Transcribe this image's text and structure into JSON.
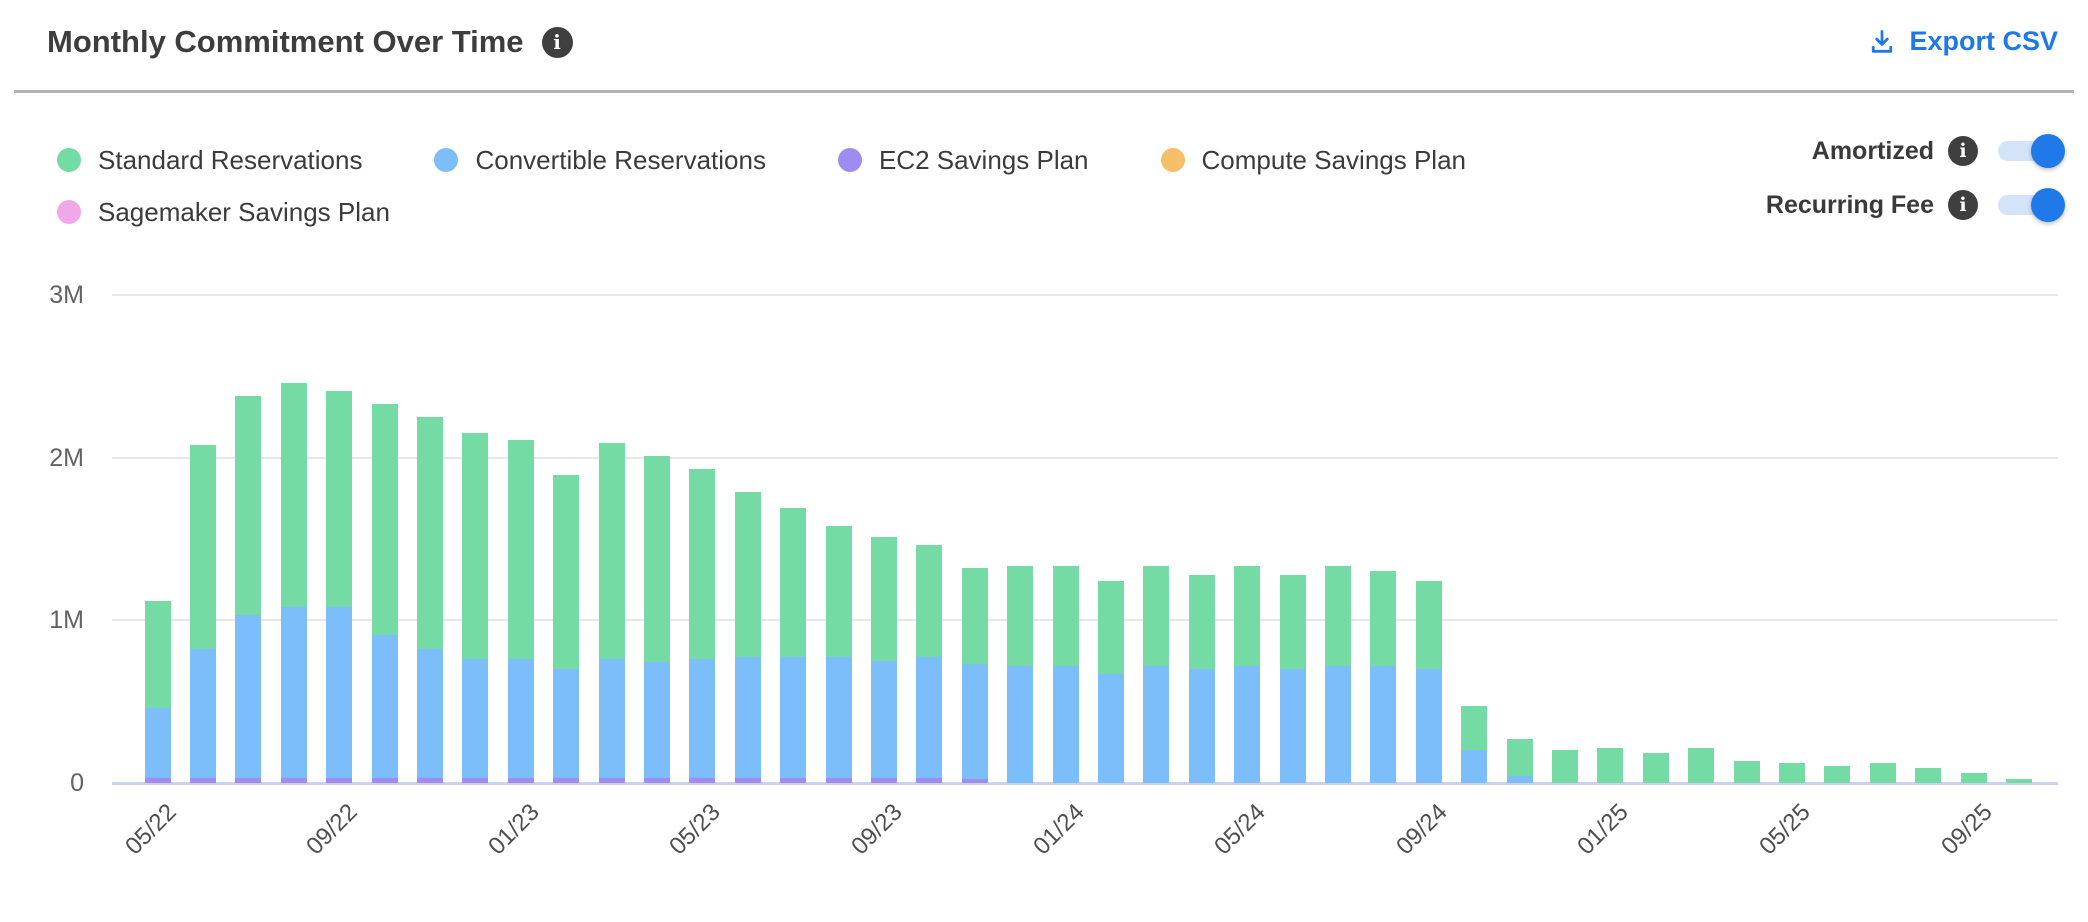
{
  "header": {
    "title": "Monthly Commitment Over Time",
    "export_label": "Export CSV"
  },
  "toggles": [
    {
      "label": "Amortized",
      "state": "on"
    },
    {
      "label": "Recurring Fee",
      "state": "on"
    }
  ],
  "colors": {
    "standard_reservations": "#74dba5",
    "convertible_reservations": "#7cbef9",
    "ec2_savings_plan": "#a08cf0",
    "compute_savings_plan": "#f5bf67",
    "sagemaker_savings_plan": "#f0a8ea",
    "accent_blue": "#1e78e9",
    "toggle_track": "#d3e3f8",
    "info_icon_bg": "#3f3f3f"
  },
  "legend_rows": [
    [
      0,
      1,
      2,
      3
    ],
    [
      4
    ]
  ],
  "chart_data": {
    "type": "bar",
    "subtype": "stacked",
    "title": "Monthly Commitment Over Time",
    "value_unit": "millions",
    "ylim": [
      0,
      3
    ],
    "y_ticks": [
      {
        "label": "0",
        "value": 0
      },
      {
        "label": "1M",
        "value": 1
      },
      {
        "label": "2M",
        "value": 2
      },
      {
        "label": "3M",
        "value": 3
      }
    ],
    "x": [
      "05/22",
      "06/22",
      "07/22",
      "08/22",
      "09/22",
      "10/22",
      "11/22",
      "12/22",
      "01/23",
      "02/23",
      "03/23",
      "04/23",
      "05/23",
      "06/23",
      "07/23",
      "08/23",
      "09/23",
      "10/23",
      "11/23",
      "12/23",
      "01/24",
      "02/24",
      "03/24",
      "04/24",
      "05/24",
      "06/24",
      "07/24",
      "08/24",
      "09/24",
      "10/24",
      "11/24",
      "12/24",
      "01/25",
      "02/25",
      "03/25",
      "04/25",
      "05/25",
      "06/25",
      "07/25",
      "08/25",
      "09/25",
      "10/25"
    ],
    "x_tick_indices": [
      0,
      4,
      8,
      12,
      16,
      20,
      24,
      28,
      32,
      36,
      40
    ],
    "x_tick_labels": [
      "05/22",
      "09/22",
      "01/23",
      "05/23",
      "09/23",
      "01/24",
      "05/24",
      "09/24",
      "01/25",
      "05/25",
      "09/25"
    ],
    "grid": "horizontal",
    "legend_position": "top-left",
    "stack_order_bottom_to_top": [
      "Sagemaker Savings Plan",
      "Compute Savings Plan",
      "EC2 Savings Plan",
      "Convertible Reservations",
      "Standard Reservations"
    ],
    "series": [
      {
        "name": "Standard Reservations",
        "color": "#74dba5",
        "values": [
          0.66,
          1.26,
          1.35,
          1.38,
          1.33,
          1.42,
          1.43,
          1.39,
          1.35,
          1.19,
          1.33,
          1.27,
          1.17,
          1.02,
          0.92,
          0.81,
          0.76,
          0.69,
          0.59,
          0.61,
          0.61,
          0.57,
          0.61,
          0.58,
          0.61,
          0.58,
          0.61,
          0.58,
          0.54,
          0.27,
          0.23,
          0.2,
          0.21,
          0.18,
          0.21,
          0.13,
          0.12,
          0.1,
          0.12,
          0.09,
          0.06,
          0.02
        ]
      },
      {
        "name": "Convertible Reservations",
        "color": "#7cbef9",
        "values": [
          0.43,
          0.79,
          1.0,
          1.05,
          1.05,
          0.88,
          0.79,
          0.73,
          0.73,
          0.67,
          0.73,
          0.71,
          0.73,
          0.74,
          0.74,
          0.74,
          0.72,
          0.74,
          0.71,
          0.72,
          0.72,
          0.67,
          0.72,
          0.7,
          0.72,
          0.7,
          0.72,
          0.72,
          0.7,
          0.2,
          0.04,
          0,
          0,
          0,
          0,
          0,
          0,
          0,
          0,
          0,
          0,
          0
        ]
      },
      {
        "name": "EC2 Savings Plan",
        "color": "#a08cf0",
        "values": [
          0.03,
          0.03,
          0.03,
          0.03,
          0.03,
          0.03,
          0.03,
          0.03,
          0.03,
          0.03,
          0.03,
          0.03,
          0.03,
          0.03,
          0.03,
          0.03,
          0.03,
          0.03,
          0.02,
          0,
          0,
          0,
          0,
          0,
          0,
          0,
          0,
          0,
          0,
          0,
          0,
          0,
          0,
          0,
          0,
          0,
          0,
          0,
          0,
          0,
          0,
          0
        ]
      },
      {
        "name": "Compute Savings Plan",
        "color": "#f5bf67",
        "values": [
          0,
          0,
          0,
          0,
          0,
          0,
          0,
          0,
          0,
          0,
          0,
          0,
          0,
          0,
          0,
          0,
          0,
          0,
          0,
          0,
          0,
          0,
          0,
          0,
          0,
          0,
          0,
          0,
          0,
          0,
          0,
          0,
          0,
          0,
          0,
          0,
          0,
          0,
          0,
          0,
          0,
          0
        ]
      },
      {
        "name": "Sagemaker Savings Plan",
        "color": "#f0a8ea",
        "values": [
          0,
          0,
          0,
          0,
          0,
          0,
          0,
          0,
          0,
          0,
          0,
          0,
          0,
          0,
          0,
          0,
          0,
          0,
          0,
          0,
          0,
          0,
          0,
          0,
          0,
          0,
          0,
          0,
          0,
          0,
          0,
          0,
          0,
          0,
          0,
          0,
          0,
          0,
          0,
          0,
          0,
          0
        ]
      }
    ]
  }
}
